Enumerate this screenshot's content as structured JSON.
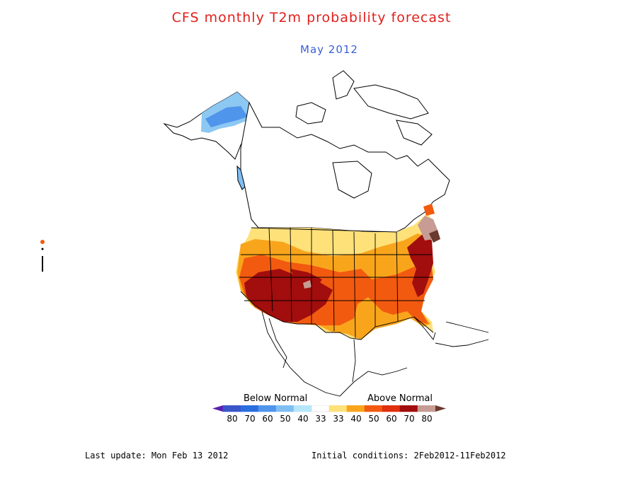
{
  "title": "CFS monthly T2m probability forecast",
  "subtitle": "May 2012",
  "legend": {
    "below_label": "Below Normal",
    "above_label": "Above Normal",
    "tick_labels": [
      "80",
      "70",
      "60",
      "50",
      "40",
      "33",
      "33",
      "40",
      "50",
      "60",
      "70",
      "80"
    ],
    "colors": [
      "#5a1fb0",
      "#3a56c8",
      "#2a6ee0",
      "#4f95ec",
      "#7fbef4",
      "#b6e6fa",
      "#ffffff",
      "#ffe17a",
      "#f9a51c",
      "#f25a10",
      "#e0300e",
      "#a20d0d",
      "#c69c94",
      "#6b3a2e"
    ]
  },
  "regions": [
    {
      "name": "above-normal-40-50",
      "color": "#ffe17a"
    },
    {
      "name": "above-normal-50-60",
      "color": "#f9a51c"
    },
    {
      "name": "above-normal-60-70",
      "color": "#f25a10"
    },
    {
      "name": "above-normal-70-80",
      "color": "#a20d0d"
    },
    {
      "name": "above-normal-80plus",
      "color": "#c69c94"
    },
    {
      "name": "below-normal-alaska",
      "color": "#7fbef4"
    }
  ],
  "footer": {
    "last_update": "Last update: Mon Feb 13 2012",
    "initial_conditions": "Initial conditions: 2Feb2012-11Feb2012"
  }
}
